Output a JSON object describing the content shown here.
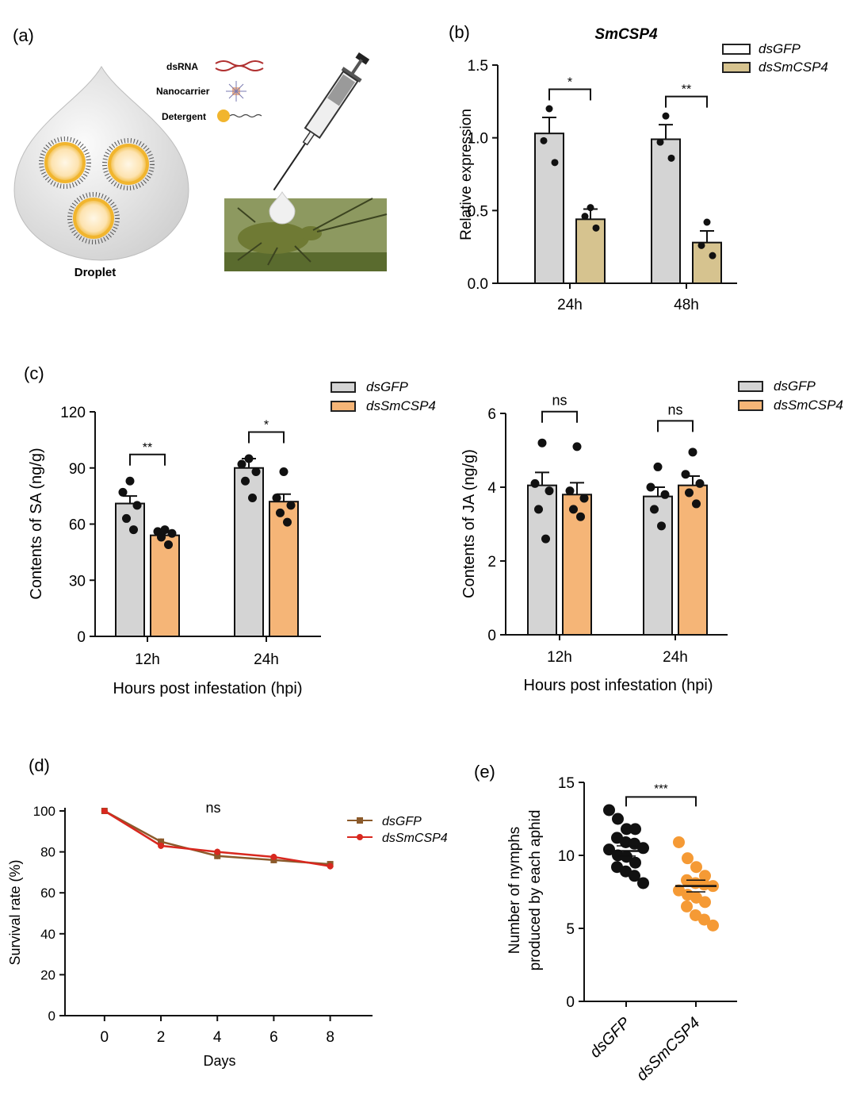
{
  "colors": {
    "gray_bar": "#d4d4d4",
    "orange_bar": "#f5b577",
    "tan_bar": "#d6c38f",
    "line_gfp": "#8b5a2b",
    "line_csp4": "#d8281f",
    "dot_black": "#111111",
    "dot_orange": "#f59a35"
  },
  "panel_a": {
    "label": "(a)",
    "legend": [
      "dsRNA",
      "Nanocarrier",
      "Detergent"
    ],
    "droplet_label": "Droplet"
  },
  "chart_data": [
    {
      "id": "b",
      "panel_label": "(b)",
      "type": "bar",
      "title": "SmCSP4",
      "categories": [
        "24h",
        "48h"
      ],
      "series": [
        {
          "name": "dsGFP",
          "values": [
            1.03,
            0.99
          ],
          "errors": [
            0.11,
            0.1
          ],
          "points": [
            [
              1.2,
              0.98,
              0.83
            ],
            [
              1.15,
              0.97,
              0.86
            ]
          ]
        },
        {
          "name": "dsSmCSP4",
          "values": [
            0.44,
            0.28
          ],
          "errors": [
            0.07,
            0.08
          ],
          "points": [
            [
              0.52,
              0.46,
              0.38
            ],
            [
              0.42,
              0.26,
              0.19
            ]
          ]
        }
      ],
      "significance": [
        "*",
        "**"
      ],
      "ylabel": "Relative expression",
      "xlabel": "",
      "ylim": [
        0,
        1.5
      ],
      "yticks": [
        "0.0",
        "0.5",
        "1.0",
        "1.5"
      ]
    },
    {
      "id": "c1",
      "panel_label": "(c)",
      "type": "bar",
      "categories": [
        "12h",
        "24h"
      ],
      "series": [
        {
          "name": "dsGFP",
          "values": [
            71,
            90
          ],
          "errors": [
            4,
            5
          ],
          "points": [
            [
              83,
              77,
              70,
              63,
              57
            ],
            [
              95,
              92,
              88,
              83,
              74
            ]
          ]
        },
        {
          "name": "dsSmCSP4",
          "values": [
            54,
            72
          ],
          "errors": [
            2,
            4
          ],
          "points": [
            [
              57,
              56,
              55,
              53,
              49
            ],
            [
              88,
              74,
              70,
              66,
              61
            ]
          ]
        }
      ],
      "significance": [
        "**",
        "*"
      ],
      "ylabel": "Contents of SA (ng/g)",
      "xlabel": "Hours post infestation (hpi)",
      "ylim": [
        0,
        120
      ],
      "yticks": [
        "0",
        "30",
        "60",
        "90",
        "120"
      ]
    },
    {
      "id": "c2",
      "type": "bar",
      "categories": [
        "12h",
        "24h"
      ],
      "series": [
        {
          "name": "dsGFP",
          "values": [
            4.05,
            3.75
          ],
          "errors": [
            0.35,
            0.25
          ],
          "points": [
            [
              5.2,
              4.1,
              3.9,
              3.4,
              2.6
            ],
            [
              4.55,
              4.0,
              3.8,
              3.4,
              2.95
            ]
          ]
        },
        {
          "name": "dsSmCSP4",
          "values": [
            3.8,
            4.05
          ],
          "errors": [
            0.32,
            0.25
          ],
          "points": [
            [
              5.1,
              3.9,
              3.7,
              3.4,
              3.2
            ],
            [
              4.95,
              4.35,
              4.1,
              3.85,
              3.55
            ]
          ]
        }
      ],
      "significance": [
        "ns",
        "ns"
      ],
      "ylabel": "Contents of JA (ng/g)",
      "xlabel": "Hours post infestation (hpi)",
      "ylim": [
        0,
        6
      ],
      "yticks": [
        "0",
        "2",
        "4",
        "6"
      ]
    },
    {
      "id": "d",
      "panel_label": "(d)",
      "type": "line",
      "x": [
        0,
        2,
        4,
        6,
        8
      ],
      "series": [
        {
          "name": "dsGFP",
          "values": [
            100,
            85,
            78,
            76,
            74
          ]
        },
        {
          "name": "dsSmCSP4",
          "values": [
            100,
            83,
            80,
            77.5,
            73
          ]
        }
      ],
      "annotation": "ns",
      "ylabel": "Survival rate (%)",
      "xlabel": "Days",
      "xticks": [
        "0",
        "2",
        "4",
        "6",
        "8"
      ],
      "yticks": [
        "0",
        "20",
        "40",
        "60",
        "80",
        "100"
      ],
      "ylim": [
        0,
        100
      ],
      "xlim": [
        -1.4,
        9.5
      ]
    },
    {
      "id": "e",
      "panel_label": "(e)",
      "type": "scatter",
      "categories": [
        "dsGFP",
        "dsSmCSP4"
      ],
      "series": [
        {
          "name": "dsGFP",
          "mean": 10.3,
          "sem": 0.35,
          "points": [
            13.1,
            12.5,
            11.8,
            11.8,
            11.2,
            10.9,
            10.8,
            10.5,
            10.4,
            10.0,
            9.9,
            9.5,
            9.2,
            8.9,
            8.6,
            8.1
          ]
        },
        {
          "name": "dsSmCSP4",
          "mean": 7.9,
          "sem": 0.4,
          "points": [
            10.9,
            9.8,
            9.2,
            8.6,
            8.3,
            8.1,
            8.0,
            7.9,
            7.6,
            7.3,
            7.1,
            6.8,
            6.5,
            5.9,
            5.6,
            5.2
          ]
        }
      ],
      "significance": "***",
      "ylabel_lines": [
        "Number of nymphs",
        "produced by each aphid"
      ],
      "ylim": [
        0,
        15
      ],
      "yticks": [
        "0",
        "5",
        "10",
        "15"
      ]
    }
  ]
}
